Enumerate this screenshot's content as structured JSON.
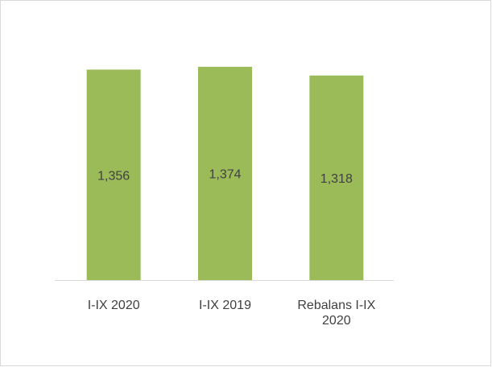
{
  "chart_data": {
    "type": "bar",
    "categories": [
      "I-IX 2020",
      "I-IX 2019",
      "Rebalans I-IX 2020"
    ],
    "values": [
      1356,
      1374,
      1318
    ],
    "value_labels": [
      "1,356",
      "1,374",
      "1,318"
    ],
    "color": "#9bbb59"
  }
}
